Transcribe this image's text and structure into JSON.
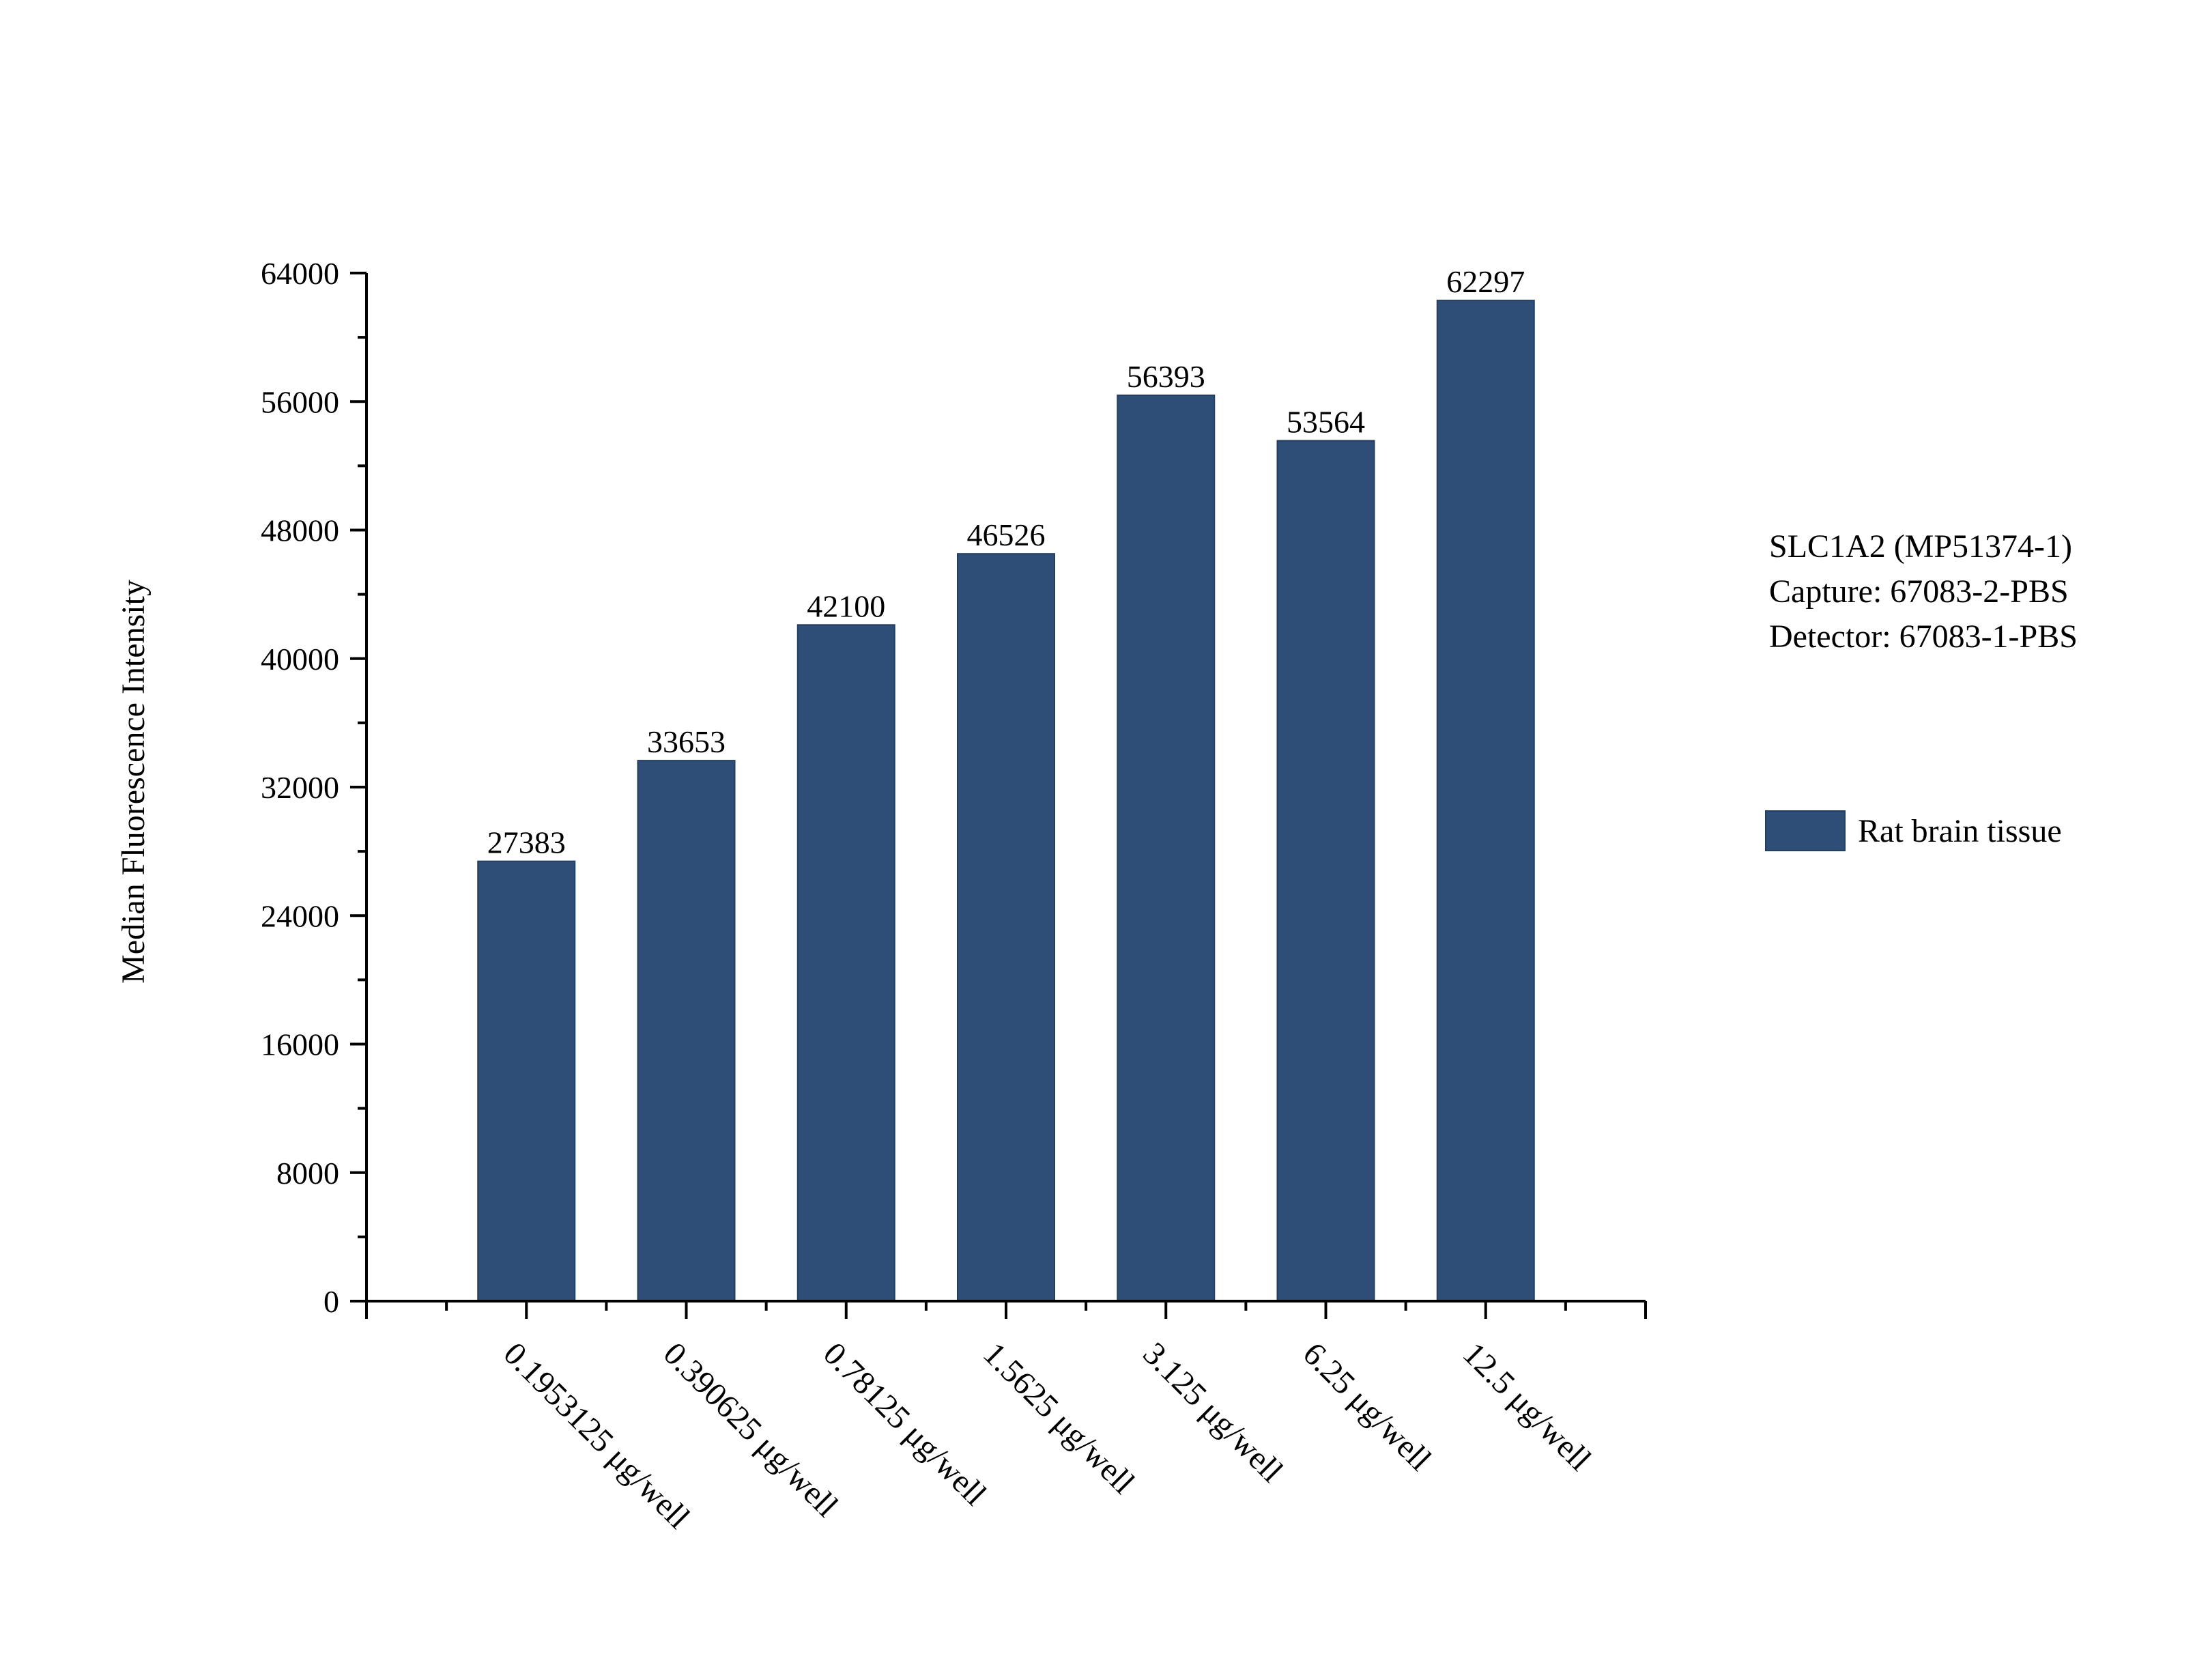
{
  "chart_data": {
    "type": "bar",
    "categories": [
      "0.1953125 μg/well",
      "0.390625 μg/well",
      "0.78125 μg/well",
      "1.5625 μg/well",
      "3.125 μg/well",
      "6.25 μg/well",
      "12.5 μg/well"
    ],
    "series": [
      {
        "name": "Rat brain tissue",
        "values": [
          27383,
          33653,
          42100,
          46526,
          56393,
          53564,
          62297
        ],
        "color": "#2f4e77"
      }
    ],
    "data_labels": [
      "27383",
      "33653",
      "42100",
      "46526",
      "56393",
      "53564",
      "62297"
    ],
    "title": "",
    "xlabel": "",
    "ylabel": "Median Fluorescence Intensity",
    "ylim": [
      0,
      64000
    ],
    "yticks": [
      0,
      8000,
      16000,
      24000,
      32000,
      40000,
      48000,
      56000,
      64000
    ],
    "ytick_labels": [
      "0",
      "8000",
      "16000",
      "24000",
      "32000",
      "40000",
      "48000",
      "56000",
      "64000"
    ],
    "grid": false,
    "legend_position": "right"
  },
  "annotation": {
    "line1": "SLC1A2 (MP51374-1)",
    "line2": "Capture: 67083-2-PBS",
    "line3": "Detector: 67083-1-PBS"
  },
  "legend": {
    "label": "Rat brain tissue"
  }
}
